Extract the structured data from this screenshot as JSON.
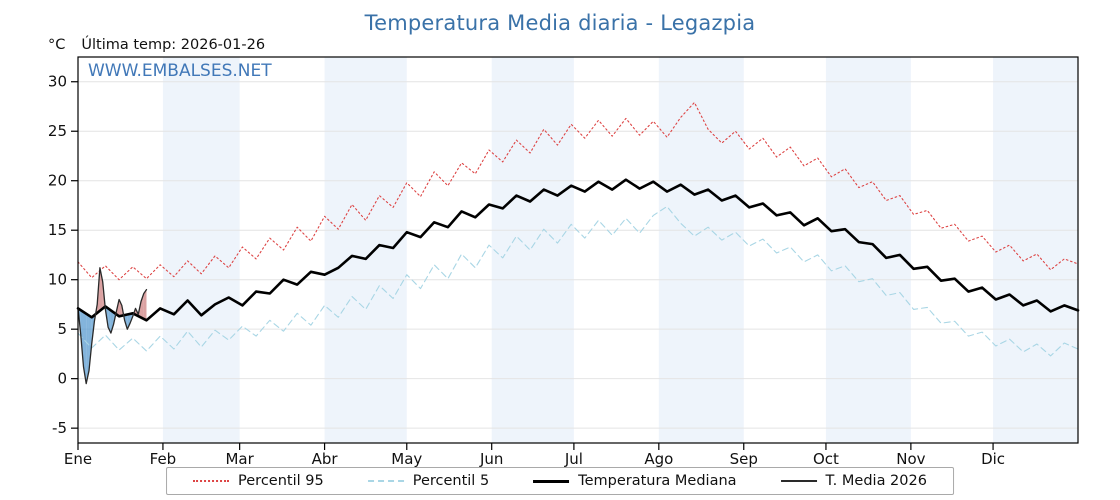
{
  "header": {
    "title": "Temperatura Media diaria - Legazpia",
    "ylabel": "°C",
    "last_temp": "Última temp: 2026-01-26",
    "watermark": "WWW.EMBALSES.NET"
  },
  "chart_data": {
    "type": "line",
    "title": "Temperatura Media diaria - Legazpia",
    "xlabel": "",
    "ylabel": "°C",
    "x_unit": "day_of_year",
    "xlim": [
      1,
      366
    ],
    "ylim": [
      -5,
      30
    ],
    "yticks": [
      -5,
      0,
      5,
      10,
      15,
      20,
      25,
      30
    ],
    "x_tick_labels": [
      "Ene",
      "Feb",
      "Mar",
      "Abr",
      "May",
      "Jun",
      "Jul",
      "Ago",
      "Sep",
      "Oct",
      "Nov",
      "Dic"
    ],
    "month_start_days": [
      1,
      32,
      60,
      91,
      121,
      152,
      182,
      213,
      244,
      274,
      305,
      335
    ],
    "grid": "horizontal-light",
    "legend_position": "bottom",
    "annotations": {
      "last_temp": "Última temp: 2026-01-26",
      "watermark": "WWW.EMBALSES.NET"
    },
    "colors": {
      "title": "#3a72a8",
      "watermark": "#4178b8",
      "grid": "#e4e4e4",
      "month_band": "#eef4fb",
      "axis": "#000000"
    },
    "fill_between": {
      "upper_series": "T. Media 2026",
      "baseline_series": "Temperatura Mediana",
      "above_color": "#cc7a7a",
      "below_color": "#4f94cd",
      "opacity": 0.7
    },
    "series": [
      {
        "name": "Percentil 95",
        "color": "#dd4444",
        "style": "dotted",
        "width": 1.1,
        "x_start": 1,
        "x_step": 5,
        "values": [
          11.8,
          10.2,
          11.4,
          10.0,
          11.3,
          10.1,
          11.5,
          10.3,
          11.9,
          10.6,
          12.4,
          11.2,
          13.3,
          12.1,
          14.2,
          13.0,
          15.3,
          13.9,
          16.4,
          15.1,
          17.6,
          16.0,
          18.5,
          17.3,
          19.8,
          18.4,
          20.9,
          19.5,
          21.8,
          20.7,
          23.1,
          21.9,
          24.1,
          22.8,
          25.2,
          23.6,
          25.7,
          24.3,
          26.1,
          24.5,
          26.3,
          24.6,
          26.0,
          24.4,
          26.4,
          27.9,
          25.2,
          23.8,
          25.0,
          23.2,
          24.3,
          22.4,
          23.4,
          21.5,
          22.3,
          20.4,
          21.2,
          19.3,
          19.9,
          18.0,
          18.5,
          16.6,
          17.0,
          15.2,
          15.6,
          13.9,
          14.4,
          12.8,
          13.5,
          11.9,
          12.6,
          11.0,
          12.1,
          11.6
        ]
      },
      {
        "name": "Percentil 5",
        "color": "#a9d6e5",
        "style": "dashed",
        "width": 1.1,
        "x_start": 1,
        "x_step": 5,
        "values": [
          4.6,
          3.1,
          4.4,
          2.9,
          4.1,
          2.8,
          4.3,
          3.0,
          4.8,
          3.2,
          4.9,
          3.9,
          5.3,
          4.3,
          5.9,
          4.8,
          6.6,
          5.4,
          7.4,
          6.2,
          8.3,
          7.0,
          9.4,
          8.1,
          10.5,
          9.1,
          11.5,
          10.1,
          12.6,
          11.2,
          13.5,
          12.2,
          14.4,
          13.0,
          15.1,
          13.7,
          15.6,
          14.2,
          16.0,
          14.5,
          16.2,
          14.7,
          16.5,
          17.4,
          15.7,
          14.4,
          15.3,
          14.0,
          14.8,
          13.4,
          14.1,
          12.7,
          13.3,
          11.8,
          12.5,
          10.9,
          11.4,
          9.8,
          10.1,
          8.4,
          8.7,
          7.0,
          7.2,
          5.6,
          5.8,
          4.3,
          4.7,
          3.3,
          4.0,
          2.7,
          3.5,
          2.3,
          3.6,
          3.0
        ]
      },
      {
        "name": "Temperatura Mediana",
        "color": "#000000",
        "style": "solid",
        "width": 2.6,
        "x_start": 1,
        "x_step": 5,
        "values": [
          7.1,
          6.2,
          7.3,
          6.3,
          6.6,
          5.9,
          7.1,
          6.5,
          7.9,
          6.4,
          7.5,
          8.2,
          7.4,
          8.8,
          8.6,
          10.0,
          9.5,
          10.8,
          10.5,
          11.2,
          12.4,
          12.1,
          13.5,
          13.2,
          14.8,
          14.3,
          15.8,
          15.3,
          16.9,
          16.3,
          17.6,
          17.2,
          18.5,
          17.9,
          19.1,
          18.5,
          19.5,
          18.9,
          19.9,
          19.1,
          20.1,
          19.2,
          19.9,
          18.9,
          19.6,
          18.6,
          19.1,
          18.0,
          18.5,
          17.3,
          17.7,
          16.5,
          16.8,
          15.5,
          16.2,
          14.9,
          15.1,
          13.8,
          13.6,
          12.2,
          12.5,
          11.1,
          11.3,
          9.9,
          10.1,
          8.8,
          9.2,
          8.0,
          8.5,
          7.4,
          7.9,
          6.8,
          7.4,
          6.9
        ]
      },
      {
        "name": "T. Media 2026",
        "color": "#2a2a2a",
        "style": "solid",
        "width": 1.3,
        "x_start": 1,
        "x_step": 1,
        "values": [
          7.2,
          4.5,
          1.2,
          -0.5,
          0.8,
          3.5,
          5.8,
          7.5,
          11.2,
          9.8,
          7.0,
          5.2,
          4.6,
          5.5,
          6.8,
          8.0,
          7.4,
          5.9,
          5.0,
          5.6,
          6.3,
          7.1,
          6.5,
          7.8,
          8.6,
          9.0
        ]
      }
    ]
  }
}
